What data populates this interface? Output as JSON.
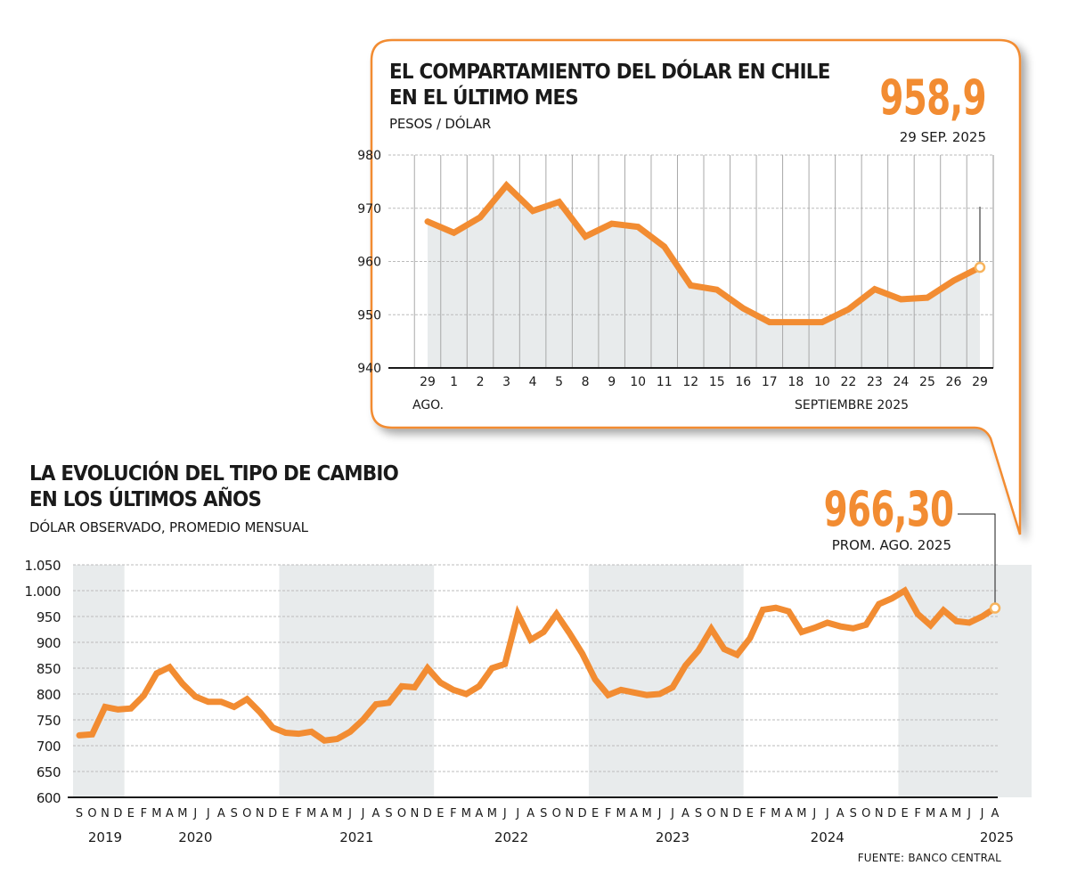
{
  "colors": {
    "accent": "#f28c32",
    "shade": "#e8ebec",
    "axis": "#1a1a1a",
    "grid": "#bbbbbb",
    "vgrid": "#a8a8a8"
  },
  "top_panel": {
    "title_line1": "EL COMPARTAMIENTO DEL DÓLAR EN CHILE",
    "title_line2": "EN EL ÚLTIMO MES",
    "subtitle": "PESOS / DÓLAR",
    "highlight_value": "958,9",
    "highlight_label": "29 SEP. 2025"
  },
  "bottom_panel": {
    "title_line1": "LA EVOLUCIÓN DEL TIPO DE CAMBIO",
    "title_line2": "EN LOS ÚLTIMOS AÑOS",
    "subtitle": "DÓLAR OBSERVADO, PROMEDIO MENSUAL",
    "highlight_value": "966,30",
    "highlight_label": "PROM. AGO. 2025",
    "source": "FUENTE: BANCO CENTRAL"
  },
  "chart_data": [
    {
      "type": "area",
      "title": "EL COMPARTAMIENTO DEL DÓLAR EN CHILE EN EL ÚLTIMO MES",
      "ylabel": "PESOS / DÓLAR",
      "xlabel_left": "AGO.",
      "xlabel_right": "SEPTIEMBRE 2025",
      "ylim": [
        940,
        980
      ],
      "yticks": [
        940,
        950,
        960,
        970,
        980
      ],
      "grid": true,
      "categories": [
        "29",
        "1",
        "2",
        "3",
        "4",
        "5",
        "8",
        "9",
        "10",
        "11",
        "12",
        "15",
        "16",
        "17",
        "18",
        "10",
        "22",
        "23",
        "24",
        "25",
        "26",
        "29"
      ],
      "values": [
        967.5,
        965.4,
        968.3,
        974.3,
        969.5,
        971.2,
        964.7,
        967.1,
        966.5,
        962.8,
        955.5,
        954.7,
        951.2,
        948.6,
        948.6,
        948.6,
        951.0,
        954.8,
        952.9,
        953.2,
        956.4,
        958.9
      ],
      "annotation": {
        "index": 21,
        "value": "958,9",
        "label": "29 SEP. 2025"
      }
    },
    {
      "type": "line",
      "title": "LA EVOLUCIÓN DEL TIPO DE CAMBIO EN LOS ÚLTIMOS AÑOS",
      "ylabel": "DÓLAR OBSERVADO, PROMEDIO MENSUAL",
      "ylim": [
        600,
        1050
      ],
      "yticks": [
        "600",
        "650",
        "700",
        "750",
        "800",
        "850",
        "900",
        "950",
        "1.000",
        "1.050"
      ],
      "grid": true,
      "month_labels": [
        "S",
        "O",
        "N",
        "D",
        "E",
        "F",
        "M",
        "A",
        "M",
        "J",
        "J",
        "A",
        "S",
        "O",
        "N",
        "D",
        "E",
        "F",
        "M",
        "A",
        "M",
        "J",
        "J",
        "A",
        "S",
        "O",
        "N",
        "D",
        "E",
        "F",
        "M",
        "A",
        "M",
        "J",
        "J",
        "A",
        "S",
        "O",
        "N",
        "D",
        "E",
        "F",
        "M",
        "A",
        "M",
        "J",
        "J",
        "A",
        "S",
        "O",
        "N",
        "D",
        "E",
        "F",
        "M",
        "A",
        "M",
        "J",
        "J",
        "A",
        "S",
        "O",
        "N",
        "D",
        "E",
        "F",
        "M",
        "A",
        "M",
        "J",
        "J",
        "A"
      ],
      "year_labels": [
        {
          "label": "2019",
          "month_index": 2
        },
        {
          "label": "2020",
          "month_index": 9
        },
        {
          "label": "2021",
          "month_index": 21.5
        },
        {
          "label": "2022",
          "month_index": 33.5
        },
        {
          "label": "2023",
          "month_index": 46
        },
        {
          "label": "2024",
          "month_index": 58
        },
        {
          "label": "2025",
          "month_index": 71
        }
      ],
      "shaded_ranges": [
        [
          0,
          4
        ],
        [
          16,
          28
        ],
        [
          40,
          52
        ],
        [
          64,
          75
        ]
      ],
      "values": [
        720,
        722,
        775,
        770,
        772,
        797,
        840,
        852,
        820,
        795,
        785,
        785,
        775,
        790,
        765,
        735,
        725,
        723,
        727,
        710,
        713,
        727,
        750,
        780,
        783,
        815,
        813,
        850,
        822,
        808,
        800,
        815,
        850,
        858,
        955,
        905,
        920,
        955,
        918,
        878,
        828,
        798,
        808,
        803,
        798,
        800,
        813,
        855,
        884,
        926,
        887,
        876,
        908,
        963,
        967,
        960,
        920,
        928,
        938,
        931,
        927,
        934,
        974,
        985,
        1000,
        955,
        933,
        962,
        941,
        938,
        950,
        966.3
      ],
      "annotation": {
        "index": 71,
        "value": "966,30",
        "label": "PROM. AGO. 2025"
      }
    }
  ]
}
